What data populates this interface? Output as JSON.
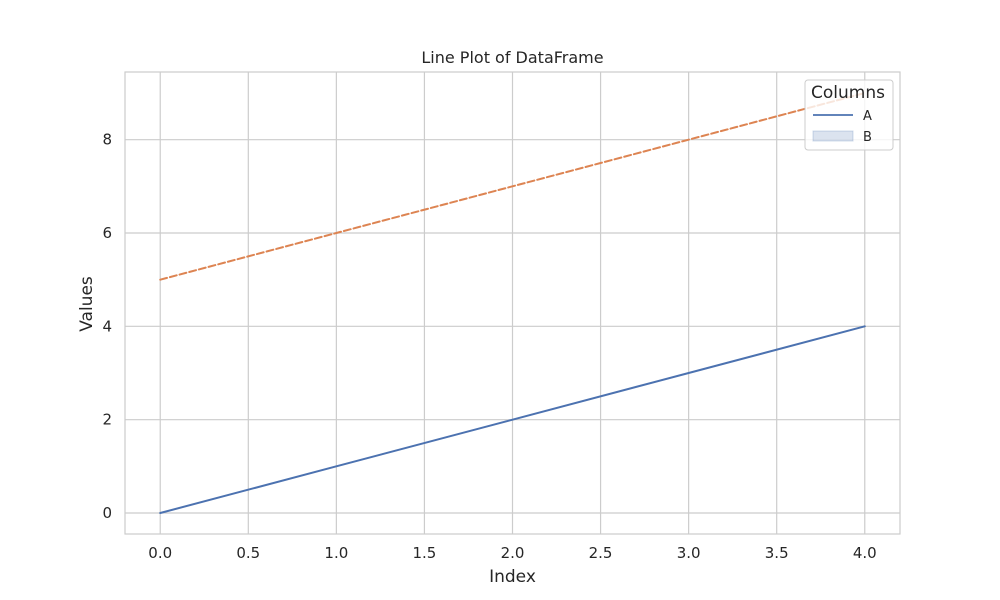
{
  "chart_data": {
    "type": "line",
    "title": "Line Plot of DataFrame",
    "xlabel": "Index",
    "ylabel": "Values",
    "xlim": [
      -0.2,
      4.2
    ],
    "ylim": [
      -0.45,
      9.45
    ],
    "xticks": [
      0.0,
      0.5,
      1.0,
      1.5,
      2.0,
      2.5,
      3.0,
      3.5,
      4.0
    ],
    "xtick_labels": [
      "0.0",
      "0.5",
      "1.0",
      "1.5",
      "2.0",
      "2.5",
      "3.0",
      "3.5",
      "4.0"
    ],
    "yticks": [
      0,
      2,
      4,
      6,
      8
    ],
    "ytick_labels": [
      "0",
      "2",
      "4",
      "6",
      "8"
    ],
    "grid": true,
    "legend": {
      "title": "Columns",
      "placement": "top-right",
      "entries": [
        {
          "label": "A",
          "marker": "line"
        },
        {
          "label": "B",
          "marker": "patch"
        }
      ]
    },
    "x": [
      0,
      1,
      2,
      3,
      4
    ],
    "series": [
      {
        "values": [
          0,
          1,
          2,
          3,
          4
        ],
        "color": "#4c72b0",
        "style": "solid"
      },
      {
        "values": [
          5,
          6,
          7,
          8,
          9
        ],
        "color": "#dd8452",
        "style": "dashed"
      }
    ]
  }
}
